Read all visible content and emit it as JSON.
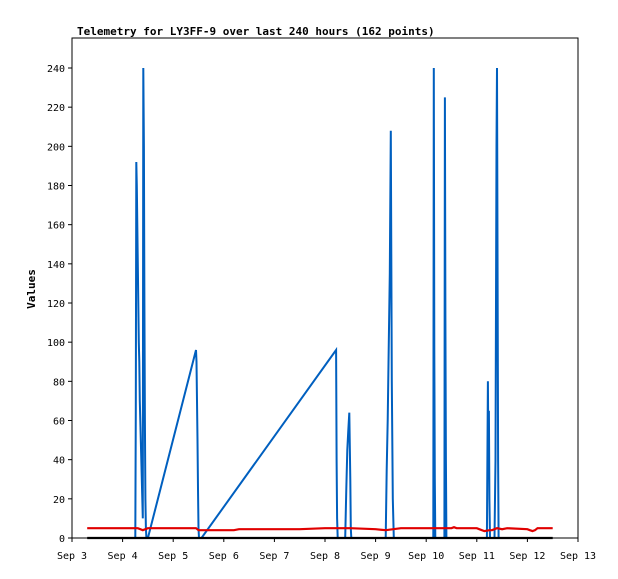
{
  "chart_data": {
    "type": "line",
    "title": "Telemetry for LY3FF-9 over last 240 hours (162 points)",
    "xlabel": "",
    "ylabel": "Values",
    "x_ticks": [
      "Sep 3",
      "Sep 4",
      "Sep 5",
      "Sep 6",
      "Sep 7",
      "Sep 8",
      "Sep 9",
      "Sep 10",
      "Sep 11",
      "Sep 12",
      "Sep 13"
    ],
    "xlim": [
      3.0,
      13.0
    ],
    "x_unit": "day of September",
    "y_ticks": [
      0,
      20,
      40,
      60,
      80,
      100,
      120,
      140,
      160,
      180,
      200,
      220,
      240
    ],
    "ylim": [
      0,
      240
    ],
    "grid": false,
    "legend": "none",
    "series": [
      {
        "color": "#005fbf",
        "x": [
          4.25,
          4.26,
          4.27,
          4.28,
          4.29,
          4.3,
          4.31,
          4.32,
          4.33,
          4.34,
          4.35,
          4.36,
          4.37,
          4.38,
          4.39,
          4.4,
          4.41,
          4.42,
          4.43,
          4.44,
          4.45,
          4.46,
          4.47,
          4.48,
          4.5,
          5.45,
          5.46,
          5.47,
          5.48,
          5.49,
          5.5,
          5.51,
          5.56,
          8.22,
          8.23,
          8.24,
          8.25,
          8.4,
          8.42,
          8.44,
          8.46,
          8.48,
          8.5,
          8.51,
          8.52,
          9.2,
          9.22,
          9.24,
          9.26,
          9.28,
          9.3,
          9.32,
          9.34,
          9.36,
          10.14,
          10.15,
          10.16,
          10.17,
          10.18,
          10.36,
          10.37,
          10.38,
          10.39,
          10.4,
          11.2,
          11.22,
          11.23,
          11.24,
          11.25,
          11.26,
          11.27,
          11.35,
          11.37,
          11.38,
          11.39,
          11.4,
          11.41,
          11.42,
          11.43
        ],
        "values": [
          0,
          65,
          192,
          180,
          160,
          140,
          120,
          100,
          90,
          70,
          60,
          50,
          40,
          30,
          20,
          10,
          240,
          200,
          120,
          60,
          20,
          5,
          0,
          0,
          0,
          96,
          90,
          70,
          50,
          25,
          5,
          0,
          0,
          96,
          40,
          10,
          0,
          0,
          25,
          45,
          55,
          64,
          30,
          5,
          0,
          0,
          35,
          60,
          100,
          135,
          208,
          80,
          20,
          0,
          0,
          240,
          96,
          30,
          0,
          0,
          225,
          112,
          40,
          0,
          0,
          80,
          40,
          65,
          20,
          0,
          0,
          0,
          40,
          120,
          200,
          240,
          150,
          40,
          0
        ]
      },
      {
        "color": "#e00000",
        "x": [
          3.3,
          4.2,
          4.3,
          4.4,
          4.5,
          4.6,
          5.3,
          5.45,
          5.5,
          5.6,
          6.2,
          6.3,
          7.0,
          7.5,
          8.0,
          8.5,
          9.0,
          9.2,
          9.5,
          10.0,
          10.5,
          10.55,
          10.6,
          10.7,
          11.0,
          11.05,
          11.15,
          11.25,
          11.3,
          11.4,
          11.5,
          11.6,
          12.0,
          12.05,
          12.1,
          12.15,
          12.2,
          12.5
        ],
        "values": [
          5,
          5,
          5,
          4,
          5,
          5,
          5,
          5,
          4,
          4,
          4,
          4.5,
          4.5,
          4.5,
          5,
          5,
          4.5,
          4,
          5,
          5,
          5,
          5.5,
          5,
          5,
          5,
          4.5,
          3.5,
          4,
          4,
          5,
          4.5,
          5,
          4.5,
          4,
          3.5,
          4,
          5,
          5
        ]
      },
      {
        "color": "#000000",
        "x": [
          3.3,
          12.5
        ],
        "values": [
          0,
          0
        ]
      }
    ]
  }
}
